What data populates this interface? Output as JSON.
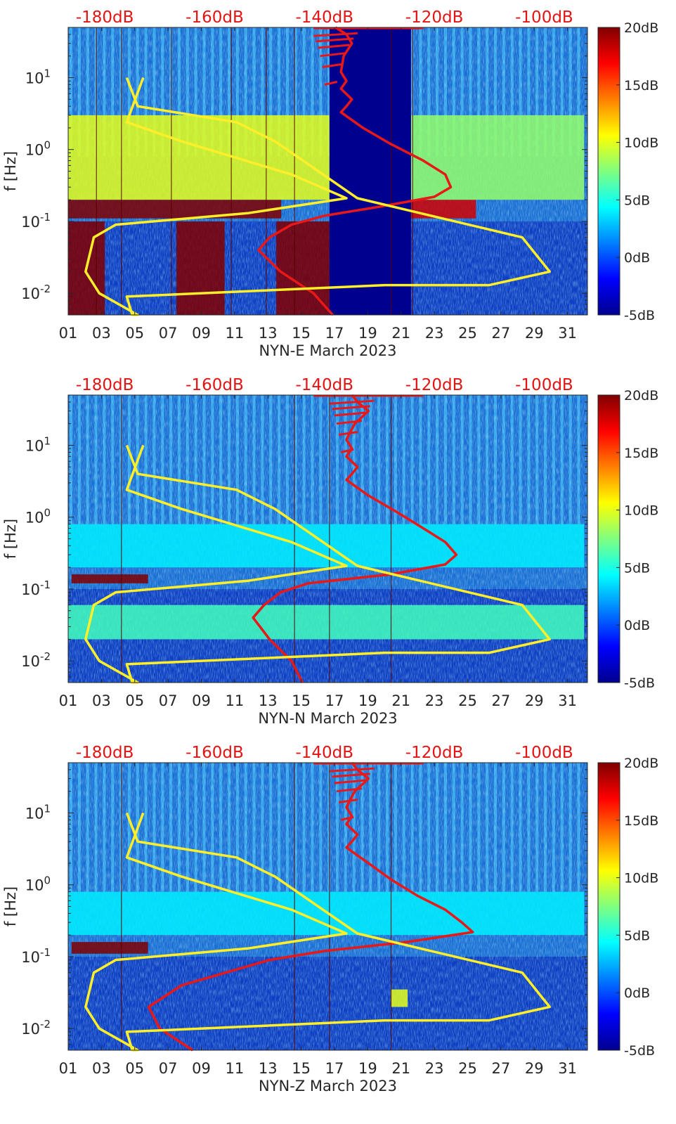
{
  "colors": {
    "background": "#ffffff",
    "axis": "#262626",
    "top_axis_text": "#e21414",
    "noise_model_curve": "#e81818",
    "reference_curve": "#ffee2a",
    "gap_fill": "#00008f",
    "spectrogram_base": "#1a6fd4"
  },
  "chart_data": [
    {
      "type": "heatmap",
      "channel": "NYN-E",
      "xlabel": "NYN-E March 2023",
      "ylabel": "f [Hz]",
      "x_ticks": [
        "01",
        "03",
        "05",
        "07",
        "09",
        "11",
        "13",
        "15",
        "17",
        "19",
        "21",
        "23",
        "25",
        "27",
        "29",
        "31"
      ],
      "x_tick_values": [
        1,
        3,
        5,
        7,
        9,
        11,
        13,
        15,
        17,
        19,
        21,
        23,
        25,
        27,
        29,
        31
      ],
      "xlim": [
        1,
        32.2
      ],
      "y_scale": "log",
      "ylim": [
        0.005,
        50
      ],
      "y_ticks": [
        {
          "base": "10",
          "exp": "1"
        },
        {
          "base": "10",
          "exp": "0"
        },
        {
          "base": "10",
          "exp": "-1"
        },
        {
          "base": "10",
          "exp": "-2"
        }
      ],
      "y_tick_values": [
        10,
        1,
        0.1,
        0.01
      ],
      "top_axis_labels": [
        "-180dB",
        "-160dB",
        "-140dB",
        "-120dB",
        "-100dB"
      ],
      "top_axis_values": [
        -180,
        -160,
        -140,
        -120,
        -100
      ],
      "colorbar_labels": [
        "20dB",
        "15dB",
        "10dB",
        "5dB",
        "0dB",
        "-5dB"
      ],
      "colorbar_range": [
        -5,
        20
      ],
      "data_gap_days": [
        16.7,
        21.6
      ],
      "day_lines": [
        2.7,
        4.2,
        7.2,
        10.8,
        12.9,
        14.6,
        20.4,
        21.7
      ],
      "bands": [
        {
          "fmin": 0.11,
          "fmax": 0.2,
          "days": [
            1,
            13.8
          ],
          "value": 20
        },
        {
          "fmin": 0.11,
          "fmax": 0.2,
          "days": [
            21.6,
            25.5
          ],
          "value": 18
        },
        {
          "fmin": 0.2,
          "fmax": 3,
          "days": [
            1,
            16.7
          ],
          "value": 10
        },
        {
          "fmin": 0.2,
          "fmax": 3,
          "days": [
            21.6,
            32
          ],
          "value": 8
        },
        {
          "fmin": 0.005,
          "fmax": 0.1,
          "days": [
            1,
            3.2
          ],
          "value": 20
        },
        {
          "fmin": 0.005,
          "fmax": 0.1,
          "days": [
            7.5,
            10.4
          ],
          "value": 20
        },
        {
          "fmin": 0.005,
          "fmax": 0.1,
          "days": [
            13.5,
            16.7
          ],
          "value": 20
        }
      ],
      "series": [
        {
          "name": "noise model",
          "x": [
            -138,
            -136,
            -135,
            -136.5,
            -137,
            -136,
            -137,
            -135,
            -136,
            -137,
            -133,
            -128,
            -122,
            -118,
            -117,
            -120,
            -130,
            -140,
            -146,
            -150,
            -152,
            -148,
            -142,
            -138.5
          ],
          "f": [
            50,
            40,
            30,
            20,
            12,
            9,
            7,
            5,
            4,
            3.3,
            2,
            1.2,
            0.7,
            0.45,
            0.3,
            0.22,
            0.16,
            0.12,
            0.09,
            0.06,
            0.04,
            0.02,
            0.01,
            0.005
          ]
        },
        {
          "name": "reference",
          "x": [
            -173,
            -176,
            -166,
            -146,
            -136,
            -154,
            -178,
            -182,
            -183.5,
            -181,
            -174,
            -175,
            -176,
            -129,
            -110,
            -99,
            -104,
            -134,
            -149,
            -156,
            -174,
            -176
          ],
          "f": [
            10,
            2.4,
            1.3,
            0.45,
            0.21,
            0.13,
            0.09,
            0.06,
            0.02,
            0.01,
            0.005,
            0.005,
            0.009,
            0.013,
            0.013,
            0.02,
            0.06,
            0.21,
            1.3,
            2.4,
            4,
            10
          ],
          "close": true
        }
      ]
    },
    {
      "type": "heatmap",
      "channel": "NYN-N",
      "xlabel": "NYN-N March 2023",
      "ylabel": "f [Hz]",
      "x_ticks": [
        "01",
        "03",
        "05",
        "07",
        "09",
        "11",
        "13",
        "15",
        "17",
        "19",
        "21",
        "23",
        "25",
        "27",
        "29",
        "31"
      ],
      "x_tick_values": [
        1,
        3,
        5,
        7,
        9,
        11,
        13,
        15,
        17,
        19,
        21,
        23,
        25,
        27,
        29,
        31
      ],
      "xlim": [
        1,
        32.2
      ],
      "y_scale": "log",
      "ylim": [
        0.005,
        50
      ],
      "y_ticks": [
        {
          "base": "10",
          "exp": "1"
        },
        {
          "base": "10",
          "exp": "0"
        },
        {
          "base": "10",
          "exp": "-1"
        },
        {
          "base": "10",
          "exp": "-2"
        }
      ],
      "y_tick_values": [
        10,
        1,
        0.1,
        0.01
      ],
      "top_axis_labels": [
        "-180dB",
        "-160dB",
        "-140dB",
        "-120dB",
        "-100dB"
      ],
      "top_axis_values": [
        -180,
        -160,
        -140,
        -120,
        -100
      ],
      "colorbar_labels": [
        "20dB",
        "15dB",
        "10dB",
        "5dB",
        "0dB",
        "-5dB"
      ],
      "colorbar_range": [
        -5,
        20
      ],
      "data_gap_days": null,
      "day_lines": [
        4.2,
        14.6,
        16.7,
        20.4
      ],
      "bands": [
        {
          "fmin": 0.12,
          "fmax": 0.16,
          "days": [
            1.2,
            5.8
          ],
          "value": 20
        },
        {
          "fmin": 0.2,
          "fmax": 0.8,
          "days": [
            1,
            32
          ],
          "value": 4
        },
        {
          "fmin": 0.02,
          "fmax": 0.06,
          "days": [
            1,
            32
          ],
          "value": 6
        }
      ],
      "series": [
        {
          "name": "noise model",
          "x": [
            -135,
            -134,
            -132,
            -134.5,
            -136,
            -135,
            -136,
            -134,
            -135,
            -136,
            -132,
            -127,
            -122,
            -118,
            -116,
            -118,
            -128,
            -143,
            -148,
            -151,
            -153,
            -150,
            -146,
            -144
          ],
          "f": [
            50,
            40,
            30,
            20,
            12,
            9,
            7,
            5,
            4,
            3.3,
            2,
            1.2,
            0.7,
            0.45,
            0.3,
            0.22,
            0.16,
            0.12,
            0.09,
            0.06,
            0.04,
            0.02,
            0.01,
            0.005
          ]
        },
        {
          "name": "reference",
          "x": [
            -173,
            -176,
            -166,
            -146,
            -136,
            -154,
            -178,
            -182,
            -183.5,
            -181,
            -174,
            -175,
            -176,
            -129,
            -110,
            -99,
            -104,
            -134,
            -149,
            -156,
            -174,
            -176
          ],
          "f": [
            10,
            2.4,
            1.3,
            0.45,
            0.21,
            0.13,
            0.09,
            0.06,
            0.02,
            0.01,
            0.005,
            0.005,
            0.009,
            0.013,
            0.013,
            0.02,
            0.06,
            0.21,
            1.3,
            2.4,
            4,
            10
          ],
          "close": true
        }
      ]
    },
    {
      "type": "heatmap",
      "channel": "NYN-Z",
      "xlabel": "NYN-Z March 2023",
      "ylabel": "f [Hz]",
      "x_ticks": [
        "01",
        "03",
        "05",
        "07",
        "09",
        "11",
        "13",
        "15",
        "17",
        "19",
        "21",
        "23",
        "25",
        "27",
        "29",
        "31"
      ],
      "x_tick_values": [
        1,
        3,
        5,
        7,
        9,
        11,
        13,
        15,
        17,
        19,
        21,
        23,
        25,
        27,
        29,
        31
      ],
      "xlim": [
        1,
        32.2
      ],
      "y_scale": "log",
      "ylim": [
        0.005,
        50
      ],
      "y_ticks": [
        {
          "base": "10",
          "exp": "1"
        },
        {
          "base": "10",
          "exp": "0"
        },
        {
          "base": "10",
          "exp": "-1"
        },
        {
          "base": "10",
          "exp": "-2"
        }
      ],
      "y_tick_values": [
        10,
        1,
        0.1,
        0.01
      ],
      "top_axis_labels": [
        "-180dB",
        "-160dB",
        "-140dB",
        "-120dB",
        "-100dB"
      ],
      "top_axis_values": [
        -180,
        -160,
        -140,
        -120,
        -100
      ],
      "colorbar_labels": [
        "20dB",
        "15dB",
        "10dB",
        "5dB",
        "0dB",
        "-5dB"
      ],
      "colorbar_range": [
        -5,
        20
      ],
      "data_gap_days": null,
      "day_lines": [
        4.2,
        14.6,
        16.7,
        20.4
      ],
      "bands": [
        {
          "fmin": 0.11,
          "fmax": 0.16,
          "days": [
            1.2,
            5.8
          ],
          "value": 20
        },
        {
          "fmin": 0.2,
          "fmax": 0.8,
          "days": [
            1,
            32
          ],
          "value": 4
        },
        {
          "fmin": 0.02,
          "fmax": 0.035,
          "days": [
            20.4,
            21.4
          ],
          "value": 10
        }
      ],
      "series": [
        {
          "name": "noise model",
          "x": [
            -135,
            -134,
            -132,
            -134.5,
            -136,
            -135,
            -136,
            -134,
            -135,
            -136,
            -132,
            -128,
            -123,
            -118,
            -115,
            -113,
            -125,
            -140,
            -150,
            -158,
            -166,
            -172,
            -170,
            -164
          ],
          "f": [
            50,
            40,
            30,
            20,
            12,
            9,
            7,
            5,
            4,
            3.3,
            2,
            1.2,
            0.7,
            0.45,
            0.3,
            0.22,
            0.16,
            0.12,
            0.09,
            0.06,
            0.04,
            0.02,
            0.01,
            0.005
          ]
        },
        {
          "name": "reference",
          "x": [
            -173,
            -176,
            -166,
            -146,
            -136,
            -154,
            -178,
            -182,
            -183.5,
            -181,
            -174,
            -175,
            -176,
            -129,
            -110,
            -99,
            -104,
            -134,
            -149,
            -156,
            -174,
            -176
          ],
          "f": [
            10,
            2.4,
            1.3,
            0.45,
            0.21,
            0.13,
            0.09,
            0.06,
            0.02,
            0.01,
            0.005,
            0.005,
            0.009,
            0.013,
            0.013,
            0.02,
            0.06,
            0.21,
            1.3,
            2.4,
            4,
            10
          ],
          "close": true
        }
      ]
    }
  ]
}
